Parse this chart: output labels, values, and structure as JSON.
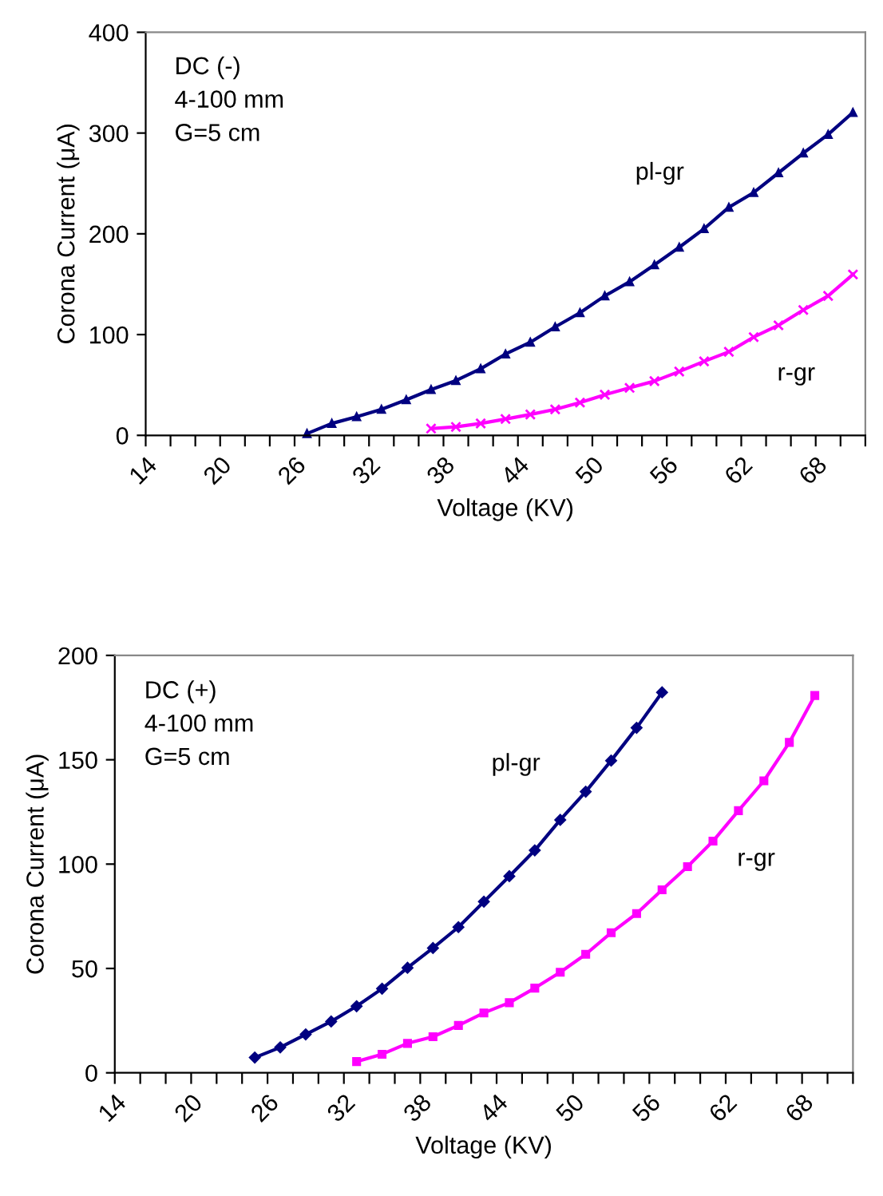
{
  "chart_data": [
    {
      "type": "line",
      "xlabel": "Voltage (KV)",
      "ylabel": "Corona Current (μA)",
      "annotations": [
        "DC (-)\n4-100 mm\nG=5 cm"
      ],
      "xlim": [
        14,
        72
      ],
      "xticks": [
        14,
        {
          "value": 16,
          "label": null
        },
        {
          "value": 18,
          "label": null
        },
        20,
        {
          "value": 22,
          "label": null
        },
        {
          "value": 24,
          "label": null
        },
        26,
        {
          "value": 28,
          "label": null
        },
        {
          "value": 30,
          "label": null
        },
        32,
        {
          "value": 34,
          "label": null
        },
        {
          "value": 36,
          "label": null
        },
        38,
        {
          "value": 40,
          "label": null
        },
        {
          "value": 42,
          "label": null
        },
        44,
        {
          "value": 46,
          "label": null
        },
        {
          "value": 48,
          "label": null
        },
        50,
        {
          "value": 52,
          "label": null
        },
        {
          "value": 54,
          "label": null
        },
        56,
        {
          "value": 58,
          "label": null
        },
        {
          "value": 60,
          "label": null
        },
        62,
        {
          "value": 64,
          "label": null
        },
        {
          "value": 66,
          "label": null
        },
        68,
        {
          "value": 70,
          "label": null
        },
        {
          "value": 72,
          "label": null
        }
      ],
      "ylim": [
        0,
        400
      ],
      "yticks": [
        0,
        100,
        200,
        300,
        400
      ],
      "grid": false,
      "legend": false,
      "line_style": "solid",
      "series": [
        {
          "name": "pl-gr",
          "color": "#000080",
          "marker": "triangle",
          "x": [
            27,
            29,
            31,
            33,
            35,
            37,
            39,
            41,
            43,
            45,
            47,
            49,
            51,
            53,
            55,
            57,
            59,
            61,
            63,
            65,
            67,
            69,
            71
          ],
          "values": [
            1.7,
            11.8,
            18.5,
            25.8,
            35.3,
            45.4,
            54.3,
            66.1,
            80.7,
            92.4,
            107.6,
            121.6,
            138.4,
            152.4,
            169.2,
            186.6,
            205.0,
            226.3,
            240.9,
            260.5,
            280.1,
            298.6,
            320.4
          ]
        },
        {
          "name": "r-gr",
          "color": "#ff00ff",
          "marker": "cross",
          "x": [
            37,
            39,
            41,
            43,
            45,
            47,
            49,
            51,
            53,
            55,
            57,
            59,
            61,
            63,
            65,
            67,
            69,
            71
          ],
          "values": [
            6.7,
            8.4,
            11.8,
            16.2,
            20.7,
            25.8,
            32.5,
            40.3,
            47.1,
            53.8,
            63.3,
            73.4,
            82.9,
            97.5,
            109.2,
            124.4,
            138.4,
            159.7
          ]
        }
      ]
    },
    {
      "type": "line",
      "xlabel": "Voltage (KV)",
      "ylabel": "Corona Current (μA)",
      "annotations": [
        "DC (+)\n4-100 mm\nG=5 cm"
      ],
      "xlim": [
        14,
        72
      ],
      "xticks": [
        14,
        {
          "value": 16,
          "label": null
        },
        {
          "value": 18,
          "label": null
        },
        20,
        {
          "value": 22,
          "label": null
        },
        {
          "value": 24,
          "label": null
        },
        26,
        {
          "value": 28,
          "label": null
        },
        {
          "value": 30,
          "label": null
        },
        32,
        {
          "value": 34,
          "label": null
        },
        {
          "value": 36,
          "label": null
        },
        38,
        {
          "value": 40,
          "label": null
        },
        {
          "value": 42,
          "label": null
        },
        44,
        {
          "value": 46,
          "label": null
        },
        {
          "value": 48,
          "label": null
        },
        50,
        {
          "value": 52,
          "label": null
        },
        {
          "value": 54,
          "label": null
        },
        56,
        {
          "value": 58,
          "label": null
        },
        {
          "value": 60,
          "label": null
        },
        62,
        {
          "value": 64,
          "label": null
        },
        {
          "value": 66,
          "label": null
        },
        68,
        {
          "value": 70,
          "label": null
        },
        {
          "value": 72,
          "label": null
        }
      ],
      "ylim": [
        0,
        200
      ],
      "yticks": [
        0,
        50,
        100,
        150,
        200
      ],
      "grid": false,
      "legend": false,
      "line_style": "solid",
      "series": [
        {
          "name": "pl-gr",
          "color": "#000080",
          "marker": "diamond",
          "x": [
            25,
            27,
            29,
            31,
            33,
            35,
            37,
            39,
            41,
            43,
            45,
            47,
            49,
            51,
            53,
            55,
            57
          ],
          "values": [
            7.3,
            12.2,
            18.4,
            24.6,
            31.9,
            40.3,
            50.3,
            59.8,
            69.8,
            82.0,
            94.2,
            106.6,
            121.2,
            134.7,
            149.6,
            165.3,
            182.3
          ]
        },
        {
          "name": "r-gr",
          "color": "#ff00ff",
          "marker": "square",
          "x": [
            33,
            35,
            37,
            39,
            41,
            43,
            45,
            47,
            49,
            51,
            53,
            55,
            57,
            59,
            61,
            63,
            65,
            67,
            69
          ],
          "values": [
            5.4,
            8.9,
            14.1,
            17.3,
            22.7,
            28.7,
            33.6,
            40.6,
            48.2,
            56.8,
            67.1,
            76.3,
            87.7,
            98.8,
            111.0,
            125.6,
            139.9,
            158.3,
            180.8
          ]
        }
      ]
    }
  ]
}
